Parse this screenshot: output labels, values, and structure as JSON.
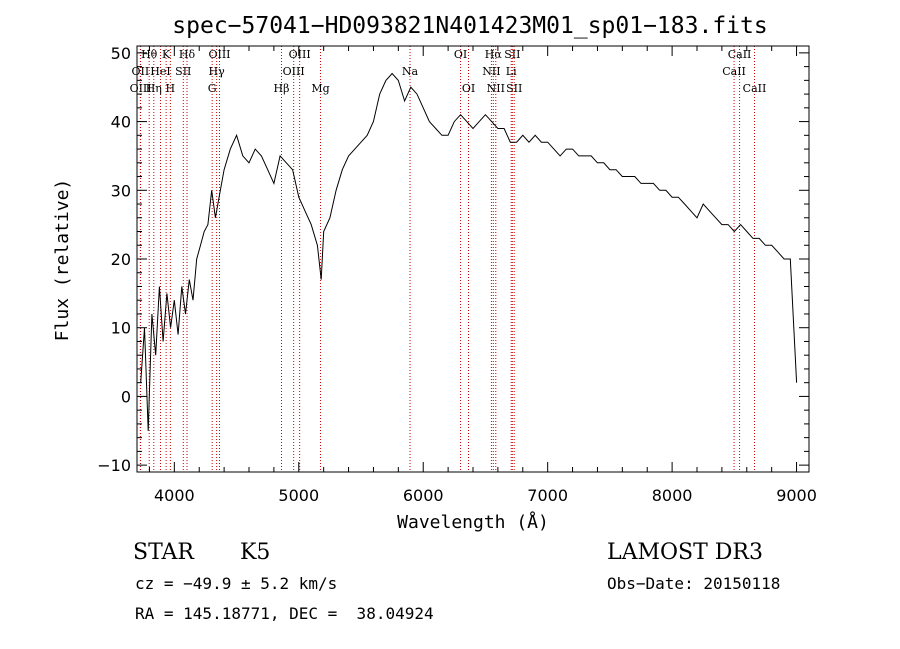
{
  "chart_data": {
    "type": "line",
    "title": "spec−57041−HD093821N401423M01_sp01−183.fits",
    "xlabel": "Wavelength (Å)",
    "ylabel": "Flux (relative)",
    "xlim": [
      3700,
      9100
    ],
    "ylim": [
      -11,
      51
    ],
    "xticks": [
      4000,
      5000,
      6000,
      7000,
      8000,
      9000
    ],
    "yticks": [
      -10,
      0,
      10,
      20,
      30,
      40,
      50
    ],
    "ytick_labels": [
      "−10",
      "0",
      "10",
      "20",
      "30",
      "40",
      "50"
    ],
    "series": [
      {
        "x": [
          3730,
          3760,
          3790,
          3820,
          3850,
          3880,
          3910,
          3940,
          3970,
          4000,
          4030,
          4060,
          4090,
          4120,
          4150,
          4180,
          4210,
          4240,
          4270,
          4300,
          4330,
          4360,
          4400,
          4450,
          4500,
          4550,
          4600,
          4650,
          4700,
          4750,
          4800,
          4850,
          4900,
          4950,
          5000,
          5050,
          5100,
          5150,
          5180,
          5200,
          5250,
          5300,
          5350,
          5400,
          5450,
          5500,
          5550,
          5600,
          5650,
          5700,
          5750,
          5800,
          5850,
          5900,
          5950,
          6000,
          6050,
          6100,
          6150,
          6200,
          6250,
          6300,
          6350,
          6400,
          6450,
          6500,
          6550,
          6600,
          6650,
          6700,
          6750,
          6800,
          6850,
          6900,
          6950,
          7000,
          7050,
          7100,
          7150,
          7200,
          7250,
          7300,
          7350,
          7400,
          7450,
          7500,
          7550,
          7600,
          7650,
          7700,
          7750,
          7800,
          7850,
          7900,
          7950,
          8000,
          8050,
          8100,
          8150,
          8200,
          8250,
          8300,
          8350,
          8400,
          8450,
          8500,
          8550,
          8600,
          8650,
          8700,
          8750,
          8800,
          8850,
          8900,
          8950,
          9000
        ],
        "y": [
          2,
          10,
          -5,
          12,
          6,
          16,
          8,
          15,
          10,
          14,
          9,
          16,
          12,
          17,
          14,
          20,
          22,
          24,
          25,
          30,
          26,
          29,
          33,
          36,
          38,
          35,
          34,
          36,
          35,
          33,
          31,
          35,
          34,
          33,
          29,
          27,
          25,
          22,
          17,
          24,
          26,
          30,
          33,
          35,
          36,
          37,
          38,
          40,
          44,
          46,
          47,
          46,
          43,
          45,
          44,
          42,
          40,
          39,
          38,
          38,
          40,
          41,
          40,
          39,
          40,
          41,
          40,
          39,
          39,
          37,
          37,
          38,
          37,
          38,
          37,
          37,
          36,
          35,
          36,
          36,
          35,
          35,
          35,
          34,
          34,
          33,
          33,
          32,
          32,
          32,
          31,
          31,
          31,
          30,
          30,
          29,
          29,
          28,
          27,
          26,
          28,
          27,
          26,
          25,
          25,
          24,
          25,
          24,
          23,
          23,
          22,
          22,
          21,
          20,
          20,
          2
        ]
      }
    ],
    "line_marks": [
      {
        "wl": 3798,
        "labels": [
          "Hθ"
        ],
        "row": 0
      },
      {
        "wl": 3727,
        "labels": [
          "OII"
        ],
        "row": 1
      },
      {
        "wl": 3729,
        "labels": [
          "OIII"
        ],
        "row": 2
      },
      {
        "wl": 3835,
        "labels": [
          "Hη"
        ],
        "row": 2
      },
      {
        "wl": 3889,
        "labels": [
          "HeI"
        ],
        "row": 1
      },
      {
        "wl": 3934,
        "labels": [
          "K"
        ],
        "row": 0
      },
      {
        "wl": 3968,
        "labels": [
          "H"
        ],
        "row": 2
      },
      {
        "wl": 4072,
        "labels": [
          "SII"
        ],
        "row": 1
      },
      {
        "wl": 4102,
        "labels": [
          "Hδ"
        ],
        "row": 0
      },
      {
        "wl": 4304,
        "labels": [
          "G"
        ],
        "row": 2
      },
      {
        "wl": 4340,
        "labels": [
          "Hγ"
        ],
        "row": 1
      },
      {
        "wl": 4363,
        "labels": [
          "OIII"
        ],
        "row": 0
      },
      {
        "wl": 4861,
        "labels": [
          "Hβ"
        ],
        "row": 2
      },
      {
        "wl": 4959,
        "labels": [
          "OIII"
        ],
        "row": 1
      },
      {
        "wl": 5007,
        "labels": [
          "OIII"
        ],
        "row": 0
      },
      {
        "wl": 5175,
        "labels": [
          "Mg"
        ],
        "row": 2
      },
      {
        "wl": 5894,
        "labels": [
          "Na"
        ],
        "row": 1
      },
      {
        "wl": 6300,
        "labels": [
          "OI"
        ],
        "row": 0
      },
      {
        "wl": 6364,
        "labels": [
          "OI"
        ],
        "row": 2
      },
      {
        "wl": 6548,
        "labels": [
          "NII"
        ],
        "row": 1
      },
      {
        "wl": 6563,
        "labels": [
          "Hα"
        ],
        "row": 0
      },
      {
        "wl": 6583,
        "labels": [
          "NII"
        ],
        "row": 2
      },
      {
        "wl": 6707,
        "labels": [
          "Li"
        ],
        "row": 1
      },
      {
        "wl": 6716,
        "labels": [
          "SII"
        ],
        "row": 0
      },
      {
        "wl": 6731,
        "labels": [
          "SII"
        ],
        "row": 2
      },
      {
        "wl": 8498,
        "labels": [
          "CaII"
        ],
        "row": 1
      },
      {
        "wl": 8542,
        "labels": [
          "CaII"
        ],
        "row": 0
      },
      {
        "wl": 8662,
        "labels": [
          "CaII"
        ],
        "row": 2
      }
    ],
    "line_color": "#000000",
    "mark_color": "#cc0000"
  },
  "info": {
    "class": "STAR",
    "subclass": "K5",
    "survey": "LAMOST DR3",
    "cz": "cz = −49.9 ± 5.2 km/s",
    "obs_date": "Obs−Date: 20150118",
    "radec": "RA = 145.18771, DEC =  38.04924"
  }
}
